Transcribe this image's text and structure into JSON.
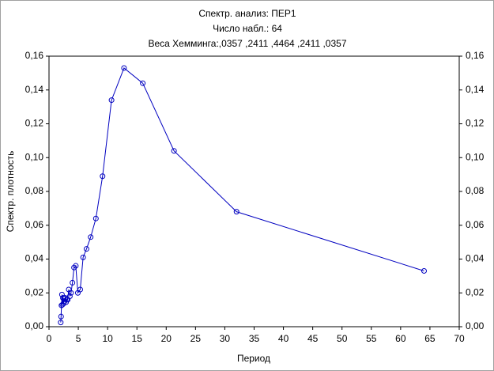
{
  "chart_data": {
    "type": "line",
    "title": "Спектр. анализ: ПЕР1",
    "subtitle": "Число набл.: 64",
    "annotation": "Веса Хемминга:,0357 ,2411 ,4464 ,2411 ,0357",
    "x_label": "Период",
    "y_label": "Спектр. плотность",
    "x": [
      64,
      32,
      21.33,
      16,
      12.8,
      10.67,
      9.14,
      8,
      7.11,
      6.4,
      5.82,
      5.33,
      4.92,
      4.57,
      4.27,
      4,
      3.76,
      3.56,
      3.37,
      3.2,
      3.05,
      2.91,
      2.78,
      2.67,
      2.56,
      2.46,
      2.37,
      2.29,
      2.21,
      2.13,
      2.06,
      2
    ],
    "series": [
      {
        "name": "Спектр. плотность",
        "color": "#0000c0",
        "values": [
          0.033,
          0.068,
          0.104,
          0.144,
          0.153,
          0.134,
          0.089,
          0.064,
          0.053,
          0.046,
          0.041,
          0.022,
          0.02,
          0.036,
          0.035,
          0.026,
          0.02,
          0.018,
          0.022,
          0.016,
          0.016,
          0.0145,
          0.017,
          0.015,
          0.017,
          0.0136,
          0.017,
          0.013,
          0.019,
          0.0126,
          0.006,
          0.0025
        ]
      }
    ],
    "xlim": [
      0,
      70
    ],
    "xticks": [
      0,
      5,
      10,
      15,
      20,
      25,
      30,
      35,
      40,
      45,
      50,
      55,
      60,
      65,
      70
    ],
    "ylim": [
      0,
      0.16
    ],
    "yticks": [
      {
        "value": 0,
        "label": "0,00"
      },
      {
        "value": 0.02,
        "label": "0,02"
      },
      {
        "value": 0.04,
        "label": "0,04"
      },
      {
        "value": 0.06,
        "label": "0,06"
      },
      {
        "value": 0.08,
        "label": "0,08"
      },
      {
        "value": 0.1,
        "label": "0,10"
      },
      {
        "value": 0.12,
        "label": "0,12"
      },
      {
        "value": 0.14,
        "label": "0,14"
      },
      {
        "value": 0.16,
        "label": "0,16"
      }
    ],
    "grid": false
  }
}
